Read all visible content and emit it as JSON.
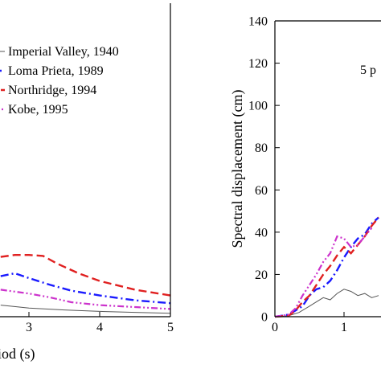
{
  "chart_data": [
    {
      "type": "line",
      "panel": "left (cropped)",
      "xlabel": "Period (s)",
      "xlabel_visible": "iod (s)",
      "x_ticks": [
        3,
        4,
        5
      ],
      "x_tick_labels": [
        "3",
        "4",
        "5"
      ],
      "xlim_visible": [
        2.6,
        5
      ],
      "legend_position": "top-left",
      "legend": [
        {
          "label": "Imperial Valley, 1940",
          "color": "#555555",
          "dash": "solid"
        },
        {
          "label": "Loma Prieta, 1989",
          "color": "#1a1aff",
          "dash": "dash-dot"
        },
        {
          "label": "Northridge, 1994",
          "color": "#e02020",
          "dash": "dash"
        },
        {
          "label": "Kobe, 1995",
          "color": "#cc33cc",
          "dash": "dash-dot-dot"
        }
      ],
      "series": [
        {
          "name": "Imperial Valley, 1940",
          "color": "#555555",
          "dash": "solid",
          "x": [
            2.6,
            3.0,
            3.5,
            4.0,
            4.5,
            5.0
          ],
          "y": [
            0.12,
            0.09,
            0.07,
            0.055,
            0.045,
            0.035
          ]
        },
        {
          "name": "Loma Prieta, 1989",
          "color": "#1a1aff",
          "dash": "dash-dot",
          "x": [
            2.6,
            2.8,
            3.0,
            3.3,
            3.6,
            4.0,
            4.5,
            5.0
          ],
          "y": [
            0.42,
            0.45,
            0.4,
            0.33,
            0.27,
            0.22,
            0.17,
            0.14
          ]
        },
        {
          "name": "Northridge, 1994",
          "color": "#e02020",
          "dash": "dash",
          "x": [
            2.6,
            2.8,
            3.0,
            3.2,
            3.4,
            3.7,
            4.0,
            4.5,
            5.0
          ],
          "y": [
            0.62,
            0.64,
            0.64,
            0.63,
            0.55,
            0.45,
            0.37,
            0.28,
            0.22
          ]
        },
        {
          "name": "Kobe, 1995",
          "color": "#cc33cc",
          "dash": "dash-dot-dot",
          "x": [
            2.6,
            3.0,
            3.3,
            3.6,
            4.0,
            4.5,
            5.0
          ],
          "y": [
            0.28,
            0.24,
            0.2,
            0.15,
            0.12,
            0.1,
            0.08
          ]
        }
      ]
    },
    {
      "type": "line",
      "panel": "right (cropped)",
      "ylabel": "Spectral displacement (cm)",
      "ylim": [
        0,
        140
      ],
      "y_ticks": [
        0,
        20,
        40,
        60,
        80,
        100,
        120,
        140
      ],
      "y_tick_labels": [
        "0",
        "20",
        "40",
        "60",
        "80",
        "100",
        "120",
        "140"
      ],
      "x_ticks": [
        0,
        1
      ],
      "x_tick_labels": [
        "0",
        "1"
      ],
      "xlim_visible": [
        0,
        1.55
      ],
      "annotation": "5 p",
      "series": [
        {
          "name": "Imperial Valley, 1940",
          "color": "#555555",
          "dash": "solid",
          "x": [
            0,
            0.2,
            0.35,
            0.5,
            0.6,
            0.7,
            0.8,
            0.9,
            1.0,
            1.1,
            1.2,
            1.3,
            1.4,
            1.5
          ],
          "y": [
            0,
            0.5,
            2,
            5,
            7,
            9,
            8,
            11,
            13,
            12,
            10,
            11,
            9,
            10
          ]
        },
        {
          "name": "Loma Prieta, 1989",
          "color": "#1a1aff",
          "dash": "dash-dot",
          "x": [
            0,
            0.2,
            0.4,
            0.5,
            0.6,
            0.7,
            0.8,
            0.9,
            1.0,
            1.1,
            1.2,
            1.3,
            1.4,
            1.5
          ],
          "y": [
            0,
            1,
            5,
            10,
            13,
            14,
            17,
            22,
            28,
            33,
            37,
            39,
            44,
            47
          ]
        },
        {
          "name": "Northridge, 1994",
          "color": "#e02020",
          "dash": "dash",
          "x": [
            0,
            0.2,
            0.3,
            0.4,
            0.5,
            0.6,
            0.7,
            0.8,
            0.9,
            1.0,
            1.1,
            1.2,
            1.3,
            1.4,
            1.5
          ],
          "y": [
            0,
            0.5,
            3,
            7,
            10,
            15,
            20,
            24,
            29,
            33,
            30,
            34,
            38,
            43,
            47
          ]
        },
        {
          "name": "Kobe, 1995",
          "color": "#cc33cc",
          "dash": "dash-dot-dot",
          "x": [
            0,
            0.2,
            0.3,
            0.4,
            0.5,
            0.6,
            0.7,
            0.8,
            0.9,
            1.0,
            1.1,
            1.2,
            1.3,
            1.4
          ],
          "y": [
            0,
            1,
            4,
            10,
            15,
            20,
            26,
            30,
            38,
            37,
            33,
            34,
            38,
            42
          ]
        }
      ]
    }
  ]
}
